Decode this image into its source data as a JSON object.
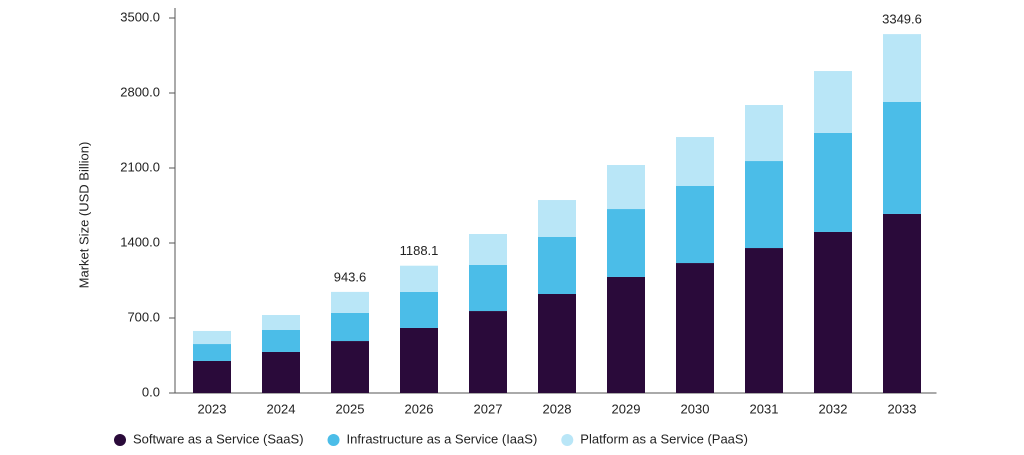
{
  "chart_data": {
    "type": "stacked_bar",
    "y_label": "Market Size (USD Billion)",
    "categories": [
      "2023",
      "2024",
      "2025",
      "2026",
      "2027",
      "2028",
      "2029",
      "2030",
      "2031",
      "2032",
      "2033"
    ],
    "series": [
      {
        "name": "Software as a Service (SaaS)",
        "color": "#2a0a3a",
        "values": [
          299,
          383,
          485,
          607,
          765,
          924,
          1083,
          1213,
          1353,
          1503,
          1671
        ]
      },
      {
        "name": "Infrastructure as a Service (IaaS)",
        "color": "#4bbde8",
        "values": [
          158,
          205,
          262,
          336,
          430,
          532,
          634,
          719,
          812,
          924,
          1045
        ]
      },
      {
        "name": "Platform as a Service (PaaS)",
        "color": "#b9e6f7",
        "values": [
          122,
          140,
          196.6,
          245.1,
          289,
          345,
          411,
          457,
          523,
          578,
          633.6
        ]
      }
    ],
    "annotations": [
      {
        "category": "2025",
        "value": 943.6
      },
      {
        "category": "2026",
        "value": 1188.1
      },
      {
        "category": "2033",
        "value": 3349.6
      }
    ],
    "ylim": [
      0,
      3500
    ],
    "yticks": [
      {
        "value": 0,
        "label": "0.0"
      },
      {
        "value": 700,
        "label": "700.0"
      },
      {
        "value": 1400,
        "label": "1400.0"
      },
      {
        "value": 2100,
        "label": "2100.0"
      },
      {
        "value": 2800,
        "label": "2800.0"
      },
      {
        "value": 3500,
        "label": "3500.0"
      }
    ],
    "legend": "bottom"
  }
}
